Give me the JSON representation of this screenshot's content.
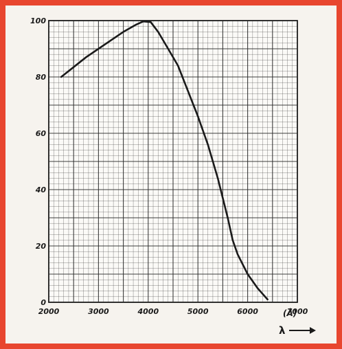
{
  "frame": {
    "border_color": "#e8462f"
  },
  "chart_data": {
    "type": "line",
    "title": "",
    "xlabel": "λ",
    "x_unit": "(Å)",
    "ylabel": "",
    "xlim": [
      2000,
      7000
    ],
    "ylim": [
      0,
      100
    ],
    "x_ticks": [
      "2000",
      "3000",
      "4000",
      "5000",
      "6000",
      "7000"
    ],
    "y_ticks": [
      "0",
      "20",
      "40",
      "60",
      "80",
      "100"
    ],
    "grid": true,
    "series": [
      {
        "color": "#1a1a1a",
        "x": [
          2250,
          2500,
          2750,
          3000,
          3250,
          3500,
          3750,
          3900,
          4050,
          4200,
          4400,
          4600,
          4800,
          5000,
          5200,
          5400,
          5600,
          5700,
          5800,
          6000,
          6200,
          6400
        ],
        "y": [
          80,
          83.5,
          87,
          90,
          93,
          96,
          98.5,
          99.7,
          99.5,
          96,
          90,
          84,
          75,
          66,
          56,
          44,
          30,
          22,
          17,
          10,
          5,
          1
        ]
      }
    ]
  }
}
